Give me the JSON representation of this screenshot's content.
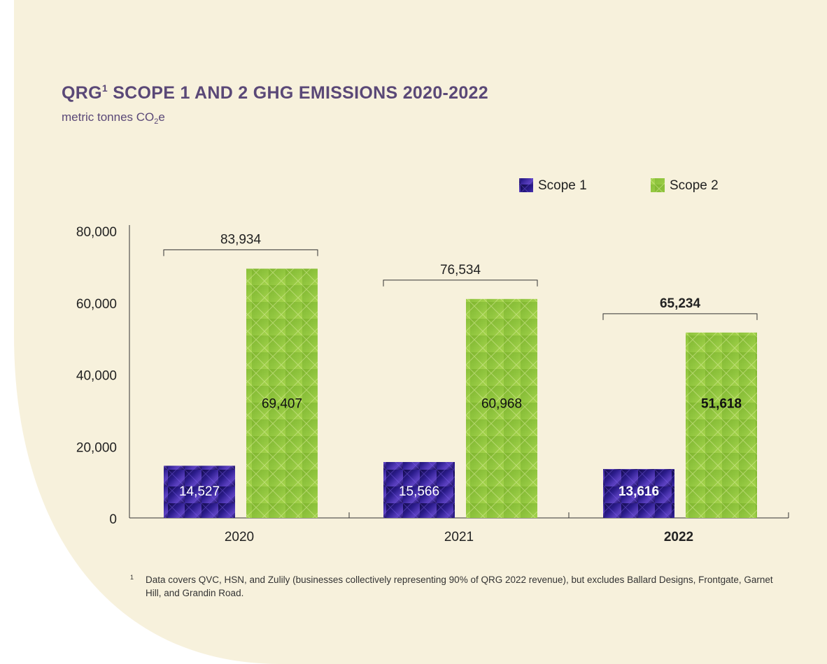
{
  "chart_data": {
    "type": "bar",
    "title_parts": [
      "QRG",
      "1",
      "SCOPE 1 AND 2 GHG EMISSIONS 2020-2022"
    ],
    "subtitle_parts": [
      "metric tonnes CO",
      "2",
      "e"
    ],
    "categories": [
      "2020",
      "2021",
      "2022"
    ],
    "series": [
      {
        "name": "Scope 1",
        "color": "#2b1c8c",
        "values": [
          14527,
          15566,
          13616
        ],
        "value_labels": [
          "14,527",
          "15,566",
          "13,616"
        ]
      },
      {
        "name": "Scope 2",
        "color": "#8fc43e",
        "values": [
          69407,
          60968,
          51618
        ],
        "value_labels": [
          "69,407",
          "60,968",
          "51,618"
        ]
      }
    ],
    "totals": [
      83934,
      76534,
      65234
    ],
    "total_labels": [
      "83,934",
      "76,534",
      "65,234"
    ],
    "ylim": [
      0,
      80000
    ],
    "yticks": [
      0,
      {
        "value": 20000,
        "label": "20,000"
      },
      {
        "value": 40000,
        "label": "40,000"
      },
      {
        "value": 60000,
        "label": "60,000"
      },
      {
        "value": 80000,
        "label": "80,000"
      }
    ],
    "grid": false,
    "legend": "top-right",
    "bold_last": true,
    "footnote_mark": "1",
    "footnote": "Data covers QVC, HSN, and Zulily (businesses collectively representing 90% of QRG 2022 revenue), but excludes Ballard Designs, Frontgate, Garnet Hill, and Grandin Road."
  }
}
